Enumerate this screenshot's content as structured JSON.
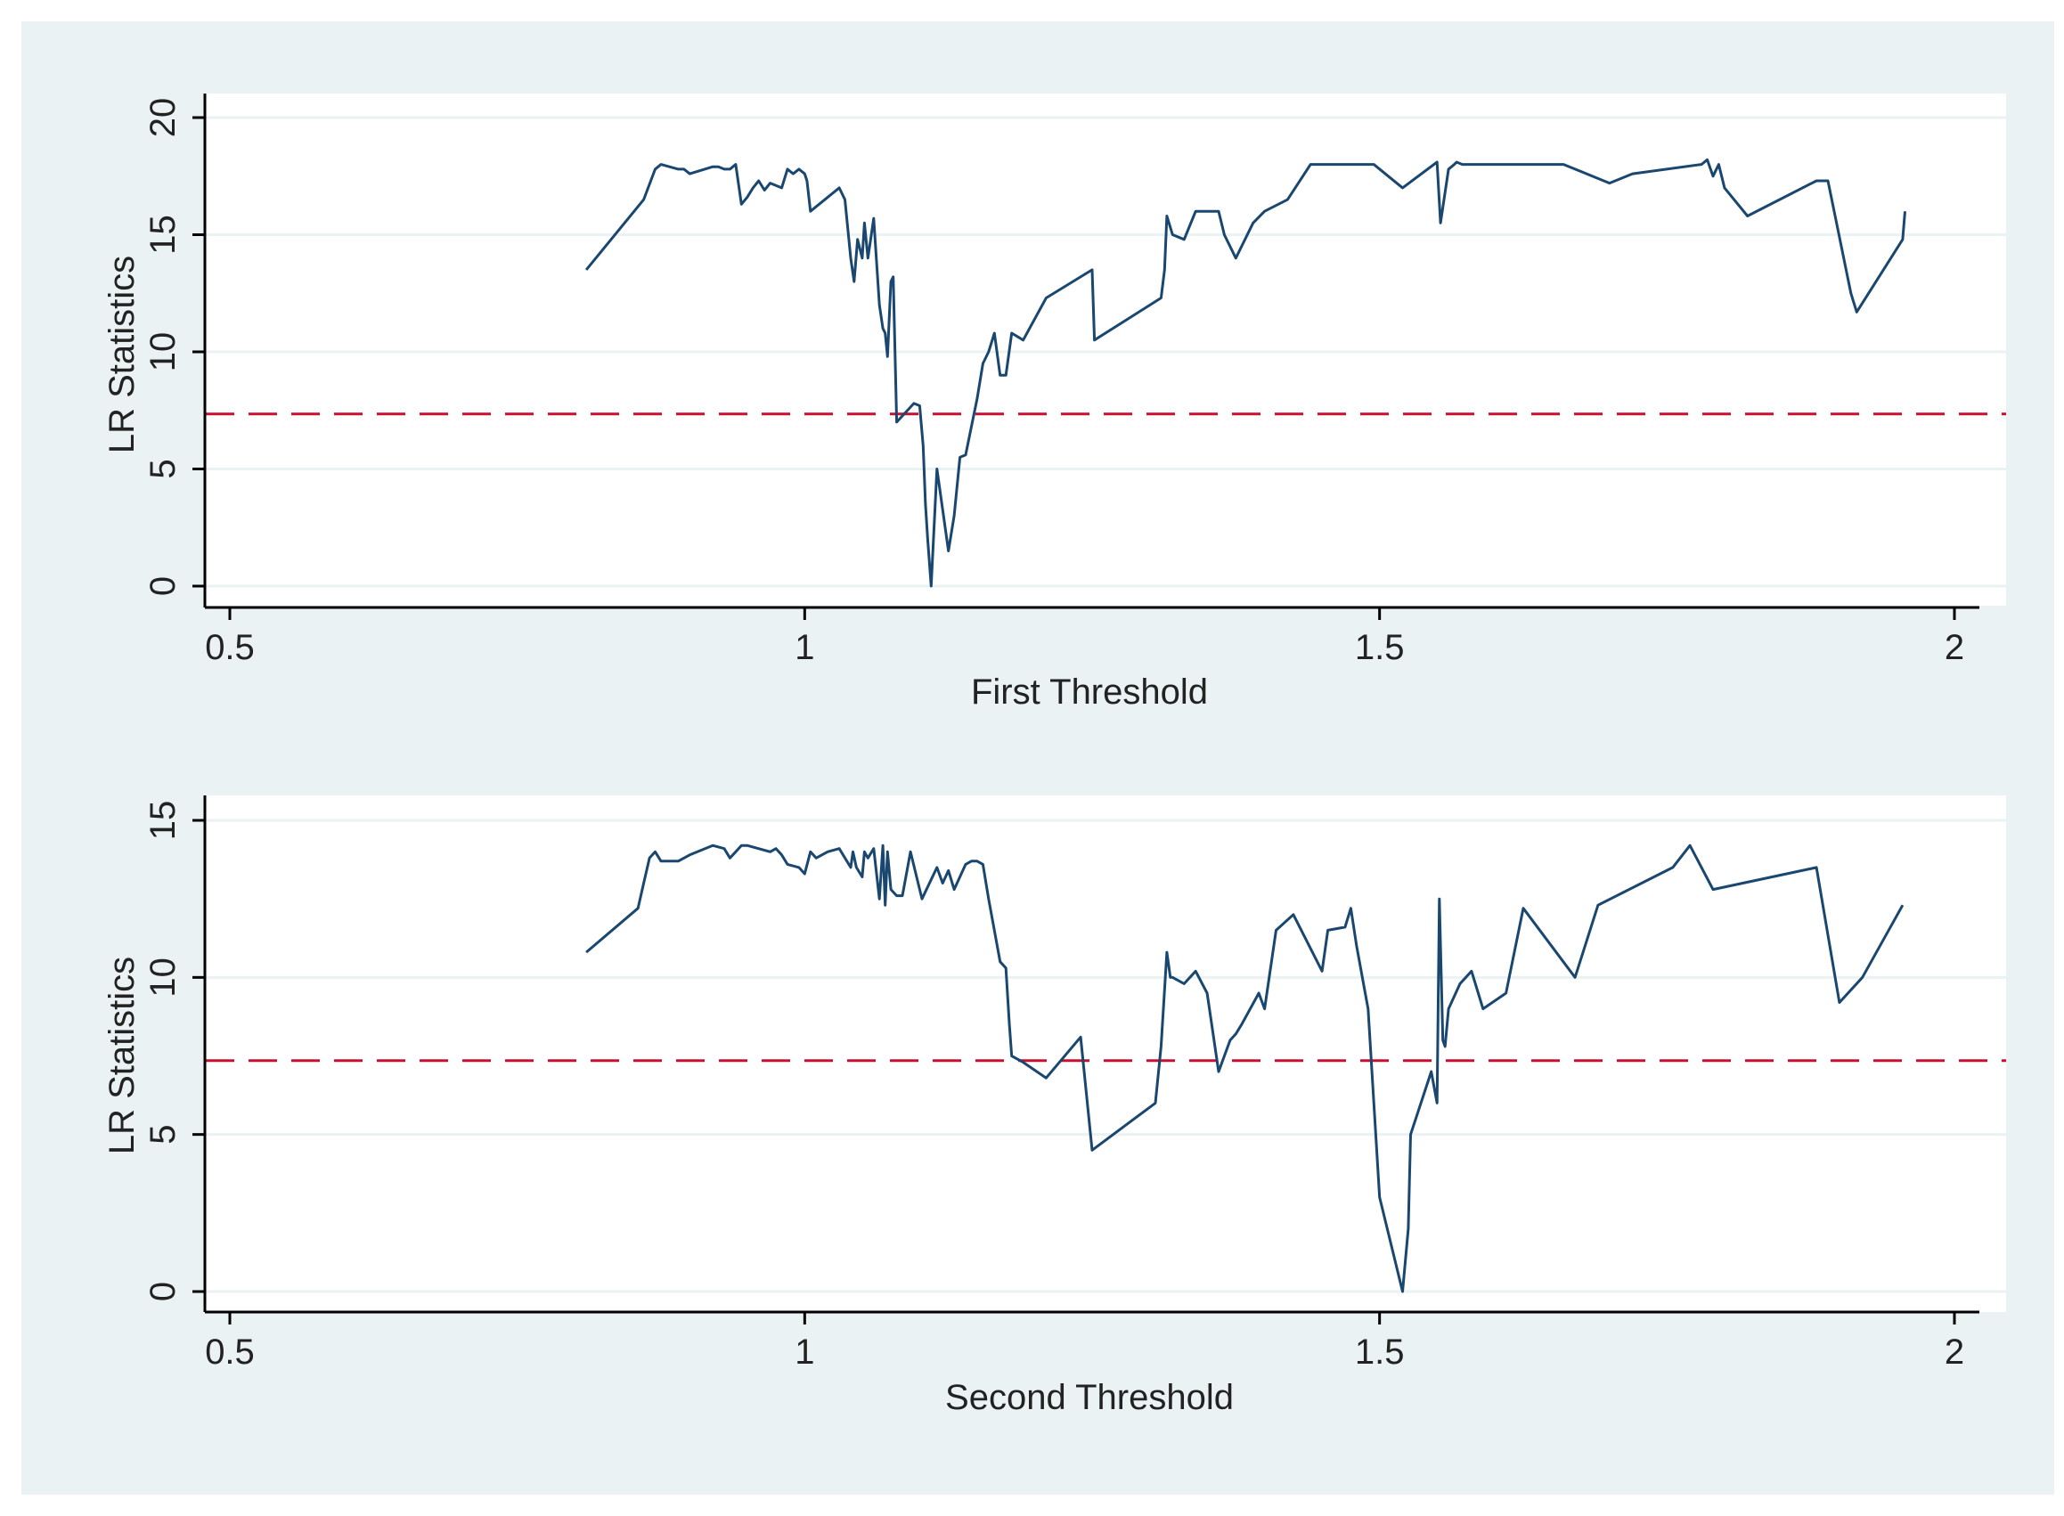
{
  "colors": {
    "outer_background": "#eaf2f3",
    "plot_background": "#ffffff",
    "gridline": "#eaf2f3",
    "axis": "#000000",
    "series_line": "#1a476f",
    "critical_line": "#c8102e"
  },
  "chart_data": [
    {
      "type": "line",
      "title": "",
      "xlabel": "First Threshold",
      "ylabel": "LR Statistics",
      "xlim": [
        0.5,
        2
      ],
      "ylim": [
        0,
        20
      ],
      "xticks": [
        0.5,
        1,
        1.5,
        2
      ],
      "xtick_labels": [
        "0.5",
        "1",
        "1.5",
        "2"
      ],
      "yticks": [
        0,
        5,
        10,
        15,
        20
      ],
      "ytick_labels": [
        "0",
        "5",
        "10",
        "15",
        "20"
      ],
      "grid": true,
      "reference_line": {
        "y": 7.35,
        "style": "dashed"
      },
      "series": [
        {
          "x": [
            0.81,
            0.86,
            0.87,
            0.875,
            0.89,
            0.895,
            0.9,
            0.92,
            0.925,
            0.93,
            0.935,
            0.94,
            0.945,
            0.95,
            0.955,
            0.96,
            0.965,
            0.97,
            0.98,
            0.985,
            0.99,
            0.995,
            1.0,
            1.002,
            1.005,
            1.03,
            1.035,
            1.038,
            1.04,
            1.043,
            1.046,
            1.05,
            1.052,
            1.055,
            1.06,
            1.065,
            1.068,
            1.07,
            1.072,
            1.075,
            1.077,
            1.08,
            1.095,
            1.1,
            1.103,
            1.105,
            1.107,
            1.11,
            1.115,
            1.125,
            1.13,
            1.135,
            1.14,
            1.15,
            1.155,
            1.16,
            1.165,
            1.17,
            1.175,
            1.18,
            1.19,
            1.21,
            1.25,
            1.252,
            1.31,
            1.313,
            1.315,
            1.32,
            1.33,
            1.34,
            1.36,
            1.365,
            1.375,
            1.39,
            1.4,
            1.42,
            1.44,
            1.45,
            1.47,
            1.49,
            1.495,
            1.52,
            1.55,
            1.553,
            1.56,
            1.565,
            1.567,
            1.572,
            1.575,
            1.58,
            1.62,
            1.66,
            1.7,
            1.72,
            1.78,
            1.785,
            1.79,
            1.795,
            1.8,
            1.82,
            1.88,
            1.89,
            1.91,
            1.915,
            1.955,
            1.957
          ],
          "y": [
            13.5,
            16.5,
            17.8,
            18.0,
            17.8,
            17.8,
            17.6,
            17.9,
            17.9,
            17.8,
            17.8,
            18.0,
            16.3,
            16.6,
            17.0,
            17.3,
            16.9,
            17.2,
            17.0,
            17.8,
            17.6,
            17.8,
            17.6,
            17.3,
            16.0,
            17.0,
            16.5,
            15.0,
            14.0,
            13.0,
            14.8,
            14.0,
            15.5,
            14.0,
            15.7,
            12.0,
            11.0,
            10.8,
            9.8,
            13.0,
            13.2,
            7.0,
            7.8,
            7.7,
            6.0,
            3.5,
            2.0,
            0.0,
            5.0,
            1.5,
            3.0,
            5.5,
            5.6,
            8.0,
            9.5,
            10.0,
            10.8,
            9.0,
            9.0,
            10.8,
            10.5,
            12.3,
            13.5,
            10.5,
            12.3,
            13.5,
            15.8,
            15.0,
            14.8,
            16.0,
            16.0,
            15.0,
            14.0,
            15.5,
            16.0,
            16.5,
            18.0,
            18.0,
            18.0,
            18.0,
            18.0,
            17.0,
            18.1,
            15.5,
            17.8,
            18.0,
            18.1,
            18.0,
            18.0,
            18.0,
            18.0,
            18.0,
            17.2,
            17.6,
            18.0,
            18.2,
            17.5,
            18.0,
            17.0,
            15.8,
            17.3,
            17.3,
            12.5,
            11.7,
            14.8,
            16.0
          ]
        }
      ]
    },
    {
      "type": "line",
      "title": "",
      "xlabel": "Second Threshold",
      "ylabel": "LR Statistics",
      "xlim": [
        0.5,
        2
      ],
      "ylim": [
        0,
        15
      ],
      "xticks": [
        0.5,
        1,
        1.5,
        2
      ],
      "xtick_labels": [
        "0.5",
        "1",
        "1.5",
        "2"
      ],
      "yticks": [
        0,
        5,
        10,
        15
      ],
      "ytick_labels": [
        "0",
        "5",
        "10",
        "15"
      ],
      "grid": true,
      "reference_line": {
        "y": 7.35,
        "style": "dashed"
      },
      "series": [
        {
          "x": [
            0.81,
            0.855,
            0.86,
            0.865,
            0.87,
            0.875,
            0.89,
            0.9,
            0.92,
            0.93,
            0.935,
            0.94,
            0.945,
            0.95,
            0.97,
            0.975,
            0.98,
            0.985,
            0.995,
            1.0,
            1.005,
            1.01,
            1.02,
            1.03,
            1.04,
            1.042,
            1.045,
            1.05,
            1.052,
            1.055,
            1.06,
            1.065,
            1.068,
            1.07,
            1.072,
            1.075,
            1.08,
            1.085,
            1.092,
            1.102,
            1.115,
            1.12,
            1.125,
            1.13,
            1.14,
            1.145,
            1.15,
            1.155,
            1.16,
            1.17,
            1.175,
            1.178,
            1.18,
            1.19,
            1.21,
            1.24,
            1.25,
            1.305,
            1.31,
            1.315,
            1.318,
            1.32,
            1.33,
            1.34,
            1.35,
            1.36,
            1.37,
            1.375,
            1.38,
            1.395,
            1.4,
            1.41,
            1.425,
            1.45,
            1.455,
            1.47,
            1.475,
            1.48,
            1.49,
            1.5,
            1.51,
            1.52,
            1.525,
            1.527,
            1.545,
            1.55,
            1.552,
            1.555,
            1.557,
            1.56,
            1.57,
            1.575,
            1.58,
            1.59,
            1.61,
            1.625,
            1.67,
            1.69,
            1.755,
            1.77,
            1.79,
            1.88,
            1.9,
            1.92,
            1.955
          ],
          "y": [
            10.8,
            12.2,
            13.0,
            13.8,
            14.0,
            13.7,
            13.7,
            13.9,
            14.2,
            14.1,
            13.8,
            14.0,
            14.2,
            14.2,
            14.0,
            14.1,
            13.9,
            13.6,
            13.5,
            13.3,
            14.0,
            13.8,
            14.0,
            14.1,
            13.5,
            14.0,
            13.5,
            13.2,
            14.0,
            13.8,
            14.1,
            12.5,
            14.2,
            12.3,
            14.0,
            12.8,
            12.6,
            12.6,
            14.0,
            12.5,
            13.5,
            13.0,
            13.4,
            12.8,
            13.6,
            13.7,
            13.7,
            13.6,
            12.5,
            10.5,
            10.3,
            8.5,
            7.5,
            7.3,
            6.8,
            8.1,
            4.5,
            6.0,
            7.8,
            10.8,
            10.0,
            10.0,
            9.8,
            10.2,
            9.5,
            7.0,
            8.0,
            8.2,
            8.5,
            9.5,
            9.0,
            11.5,
            12.0,
            10.2,
            11.5,
            11.6,
            12.2,
            11.0,
            9.0,
            3.0,
            1.5,
            0.0,
            2.0,
            5.0,
            7.0,
            6.0,
            12.5,
            8.0,
            7.8,
            9.0,
            9.8,
            10.0,
            10.2,
            9.0,
            9.5,
            12.2,
            10.0,
            12.3,
            13.5,
            14.2,
            12.8,
            13.5,
            9.2,
            10.0,
            12.3
          ]
        }
      ]
    }
  ]
}
